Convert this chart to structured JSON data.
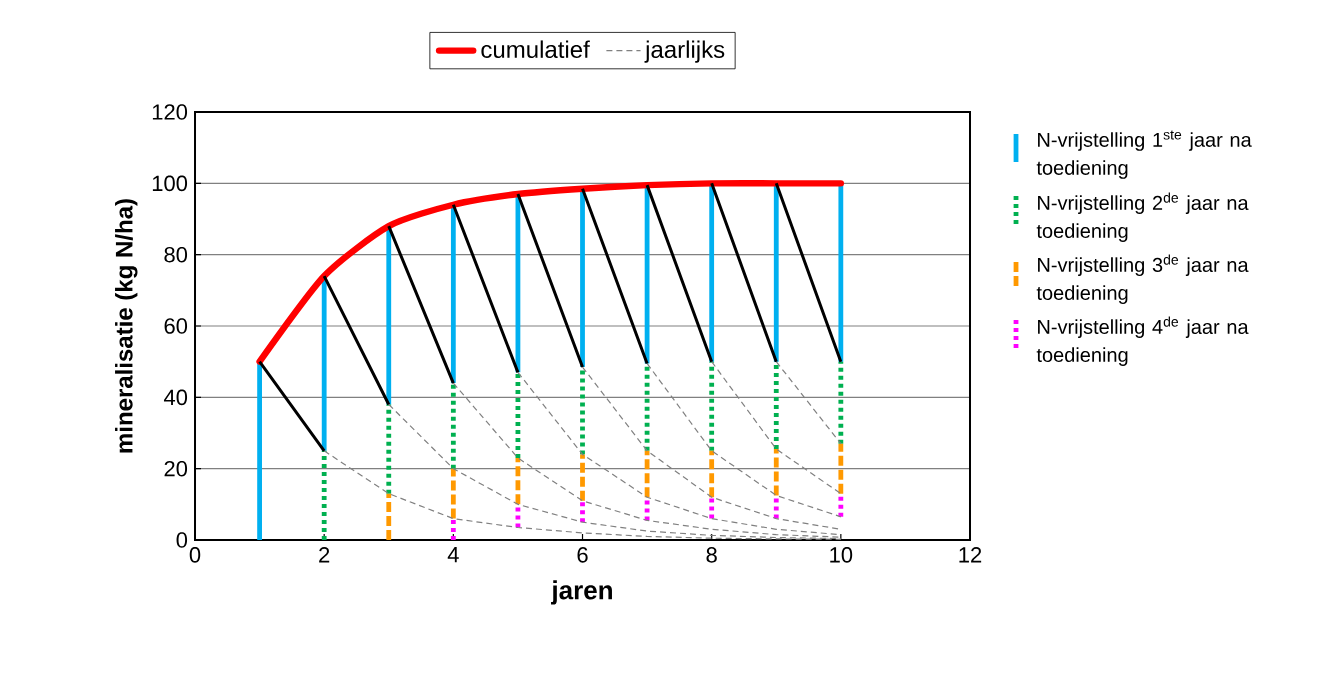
{
  "chart_data": {
    "type": "line",
    "xlabel": "jaren",
    "ylabel": "mineralisatie (kg N/ha)",
    "xlim": [
      0,
      12
    ],
    "xticks": [
      0,
      2,
      4,
      6,
      8,
      10,
      12
    ],
    "ylim": [
      0,
      120
    ],
    "yticks": [
      0,
      20,
      40,
      60,
      80,
      100,
      120
    ],
    "grid": "y",
    "legend": "top",
    "series": [
      {
        "name": "cumulatief",
        "color": "#ff0000",
        "line_style": "solid",
        "x": [
          1,
          2,
          3,
          4,
          5,
          6,
          7,
          8,
          9,
          10
        ],
        "values": [
          50,
          74,
          88,
          94,
          97,
          98.5,
          99.5,
          100,
          100,
          100
        ]
      },
      {
        "name": "jaarlijks",
        "color": "#808080",
        "line_style": "dashed",
        "x": [
          2,
          3,
          4,
          5,
          6,
          7,
          8,
          9,
          10
        ],
        "values": [
          25,
          13,
          6,
          3.5,
          2,
          1,
          0.5,
          0.3,
          0.2
        ]
      },
      {
        "color": "#808080",
        "line_style": "dashed",
        "x": [
          3,
          4,
          5,
          6,
          7,
          8,
          9,
          10
        ],
        "values": [
          38,
          20,
          10,
          5,
          2.5,
          1.3,
          0.7,
          0.4
        ]
      },
      {
        "color": "#808080",
        "line_style": "dashed",
        "x": [
          4,
          5,
          6,
          7,
          8,
          9,
          10
        ],
        "values": [
          44,
          23,
          11,
          5.5,
          3,
          1.5,
          0.8
        ]
      },
      {
        "color": "#808080",
        "line_style": "dashed",
        "x": [
          5,
          6,
          7,
          8,
          9,
          10
        ],
        "values": [
          47,
          24,
          12,
          6,
          3,
          1.5
        ]
      },
      {
        "color": "#808080",
        "line_style": "dashed",
        "x": [
          6,
          7,
          8,
          9,
          10
        ],
        "values": [
          48.5,
          25,
          12,
          6,
          3
        ]
      },
      {
        "color": "#808080",
        "line_style": "dashed",
        "x": [
          7,
          8,
          9,
          10
        ],
        "values": [
          49.5,
          25,
          12.5,
          6.5
        ]
      },
      {
        "color": "#808080",
        "line_style": "dashed",
        "x": [
          8,
          9,
          10
        ],
        "values": [
          50,
          25.5,
          13
        ]
      },
      {
        "color": "#808080",
        "line_style": "dashed",
        "x": [
          9,
          10
        ],
        "values": [
          50,
          27
        ]
      },
      {
        "color": "#000000",
        "line_style": "solid",
        "x": [
          1,
          2,
          null,
          2,
          3,
          null,
          3,
          4,
          null,
          4,
          5,
          null,
          5,
          6,
          null,
          6,
          7,
          null,
          7,
          8,
          null,
          8,
          9,
          null,
          9,
          10
        ],
        "values": [
          50,
          25,
          null,
          74,
          38,
          null,
          88,
          44,
          null,
          94,
          47,
          null,
          97,
          48.5,
          null,
          98.5,
          49.5,
          null,
          99.5,
          50,
          null,
          100,
          50,
          null,
          100,
          50
        ]
      },
      {
        "name": "N-vrijstelling 1$^{ste}$ jaar na toediening",
        "color": "#00b0f0",
        "line_style": "solid",
        "x": [
          1,
          1,
          null,
          2,
          2,
          null,
          3,
          3,
          null,
          4,
          4,
          null,
          5,
          5,
          null,
          6,
          6,
          null,
          7,
          7,
          null,
          8,
          8,
          null,
          9,
          9,
          null,
          10,
          10
        ],
        "values": [
          0,
          50,
          null,
          25,
          74,
          null,
          38,
          88,
          null,
          44,
          94,
          null,
          47,
          97,
          null,
          48.5,
          98.5,
          null,
          49.5,
          99.5,
          null,
          50,
          100,
          null,
          50,
          100,
          null,
          50,
          100
        ]
      },
      {
        "name": "N-vrijstelling 2$^{de}$ jaar na toediening",
        "color": "#00b050",
        "line_style": "dotted",
        "x": [
          2,
          2,
          null,
          3,
          3,
          null,
          4,
          4,
          null,
          5,
          5,
          null,
          6,
          6,
          null,
          7,
          7,
          null,
          8,
          8,
          null,
          9,
          9,
          null,
          10,
          10
        ],
        "values": [
          0,
          25,
          null,
          13,
          38,
          null,
          20,
          44,
          null,
          23,
          47,
          null,
          24,
          48.5,
          null,
          25,
          49.5,
          null,
          25,
          50,
          null,
          25.5,
          50,
          null,
          27,
          50
        ]
      },
      {
        "name": "N-vrijstelling 3$^{de}$ jaar na toediening",
        "color": "#ff9900",
        "line_style": "dashed",
        "x": [
          3,
          3,
          null,
          4,
          4,
          null,
          5,
          5,
          null,
          6,
          6,
          null,
          7,
          7,
          null,
          8,
          8,
          null,
          9,
          9,
          null,
          10,
          10
        ],
        "values": [
          0,
          13,
          null,
          6,
          20,
          null,
          10,
          23,
          null,
          11,
          24,
          null,
          12,
          25,
          null,
          12,
          25,
          null,
          12.5,
          25.5,
          null,
          13,
          27
        ]
      },
      {
        "name": "N-vrijstelling 4$^{de}$ jaar na toediening",
        "color": "#ff00ff",
        "line_style": "dotted",
        "x": [
          4,
          4,
          null,
          5,
          5,
          null,
          6,
          6,
          null,
          7,
          7,
          null,
          8,
          8,
          null,
          9,
          9,
          null,
          10,
          10
        ],
        "values": [
          0,
          6,
          null,
          3.5,
          10,
          null,
          5,
          11,
          null,
          5.5,
          12,
          null,
          6,
          12,
          null,
          6,
          12.5,
          null,
          6.5,
          13
        ]
      }
    ]
  }
}
